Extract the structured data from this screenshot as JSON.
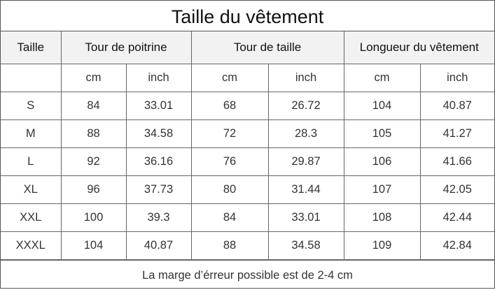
{
  "title": "Taille du vêtement",
  "headers": {
    "size": "Taille",
    "chest": "Tour de poitrine",
    "waist": "Tour de taille",
    "length": "Longueur du vêtement"
  },
  "units": [
    "cm",
    "inch",
    "cm",
    "inch",
    "cm",
    "inch"
  ],
  "rows": [
    {
      "size": "S",
      "values": [
        "84",
        "33.01",
        "68",
        "26.72",
        "104",
        "40.87"
      ]
    },
    {
      "size": "M",
      "values": [
        "88",
        "34.58",
        "72",
        "28.3",
        "105",
        "41.27"
      ]
    },
    {
      "size": "L",
      "values": [
        "92",
        "36.16",
        "76",
        "29.87",
        "106",
        "41.66"
      ]
    },
    {
      "size": "XL",
      "values": [
        "96",
        "37.73",
        "80",
        "31.44",
        "107",
        "42.05"
      ]
    },
    {
      "size": "XXL",
      "values": [
        "100",
        "39.3",
        "84",
        "33.01",
        "108",
        "42.44"
      ]
    },
    {
      "size": "XXXL",
      "values": [
        "104",
        "40.87",
        "88",
        "34.58",
        "109",
        "42.84"
      ]
    }
  ],
  "footer": "La marge d’érreur possible est de 2-4 cm",
  "colors": {
    "header_bg": "#f2f2f2",
    "border": "#666666",
    "text": "#333333"
  }
}
